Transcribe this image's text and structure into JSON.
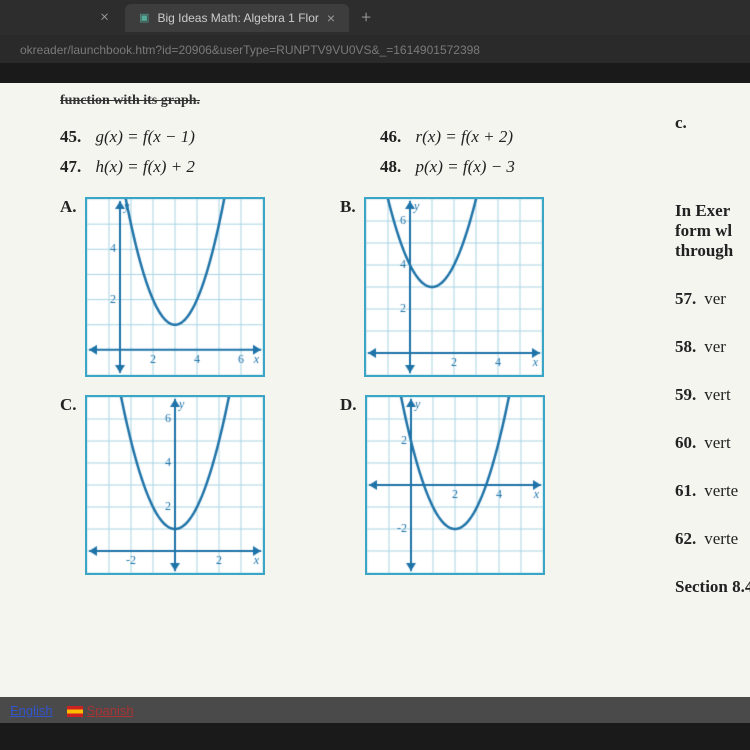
{
  "browser": {
    "tab_title": "Big Ideas Math: Algebra 1 Flor",
    "url": "okreader/launchbook.htm?id=20906&userType=RUNPTV9VU0VS&_=1614901572398"
  },
  "header_cutoff": "function with its graph.",
  "problems": [
    {
      "num": "45.",
      "fn": "g",
      "body": "f(x − 1)"
    },
    {
      "num": "46.",
      "fn": "r",
      "body": "f(x + 2)"
    },
    {
      "num": "47.",
      "fn": "h",
      "body": "f(x) + 2"
    },
    {
      "num": "48.",
      "fn": "p",
      "body": "f(x) − 3"
    }
  ],
  "right_column": {
    "c": "c.",
    "intro1": "In Exer",
    "intro2": "form wl",
    "intro3": "through",
    "items": [
      {
        "num": "57.",
        "t": "ver"
      },
      {
        "num": "58.",
        "t": "ver"
      },
      {
        "num": "59.",
        "t": "vert"
      },
      {
        "num": "60.",
        "t": "vert"
      },
      {
        "num": "61.",
        "t": "verte"
      },
      {
        "num": "62.",
        "t": "verte"
      }
    ],
    "section": "Section 8.4"
  },
  "graphs": {
    "A": {
      "type": "parabola",
      "vertex_x": 3,
      "vertex_y": 1,
      "a": 1,
      "x_range": [
        -1,
        7
      ],
      "y_range": [
        -1,
        6
      ],
      "x_ticks": [
        2,
        4,
        6
      ],
      "y_ticks": [
        2,
        4
      ],
      "y_label": "y",
      "x_label_at_end": "x",
      "axis_origin": [
        0.5,
        0
      ],
      "grid_color": "#a7d4e3",
      "curve_color": "#1e73a8",
      "axis_color": "#1e73a8",
      "label_fontsize": 12
    },
    "B": {
      "type": "parabola",
      "vertex_x": 1,
      "vertex_y": 3,
      "a": 1,
      "x_range": [
        -2,
        6
      ],
      "y_range": [
        -1,
        7
      ],
      "x_ticks": [
        2,
        4
      ],
      "y_ticks": [
        2,
        4,
        6
      ],
      "y_label": "y",
      "x_label_at_end": "x",
      "axis_origin": [
        0,
        0
      ],
      "grid_color": "#a7d4e3",
      "curve_color": "#1e73a8",
      "axis_color": "#1e73a8",
      "label_fontsize": 12
    },
    "C": {
      "type": "parabola",
      "vertex_x": 0,
      "vertex_y": 1,
      "a": 1,
      "x_range": [
        -4,
        4
      ],
      "y_range": [
        -1,
        7
      ],
      "x_ticks": [
        -2,
        2
      ],
      "y_ticks": [
        2,
        4,
        6
      ],
      "y_label": "y",
      "x_label_at_end": "x",
      "axis_origin": [
        0,
        0
      ],
      "grid_color": "#a7d4e3",
      "curve_color": "#1e73a8",
      "axis_color": "#1e73a8",
      "label_fontsize": 12
    },
    "D": {
      "type": "parabola",
      "vertex_x": 2,
      "vertex_y": -2,
      "a": 1,
      "x_range": [
        -2,
        6
      ],
      "y_range": [
        -4,
        4
      ],
      "x_ticks": [
        2,
        4
      ],
      "y_ticks": [
        -2,
        2
      ],
      "y_label": "y",
      "x_label_at_end": "x",
      "axis_origin": [
        0,
        0
      ],
      "grid_color": "#a7d4e3",
      "curve_color": "#1e73a8",
      "axis_color": "#1e73a8",
      "label_fontsize": 12
    }
  },
  "footer": {
    "english": "English",
    "spanish": "Spanish"
  }
}
